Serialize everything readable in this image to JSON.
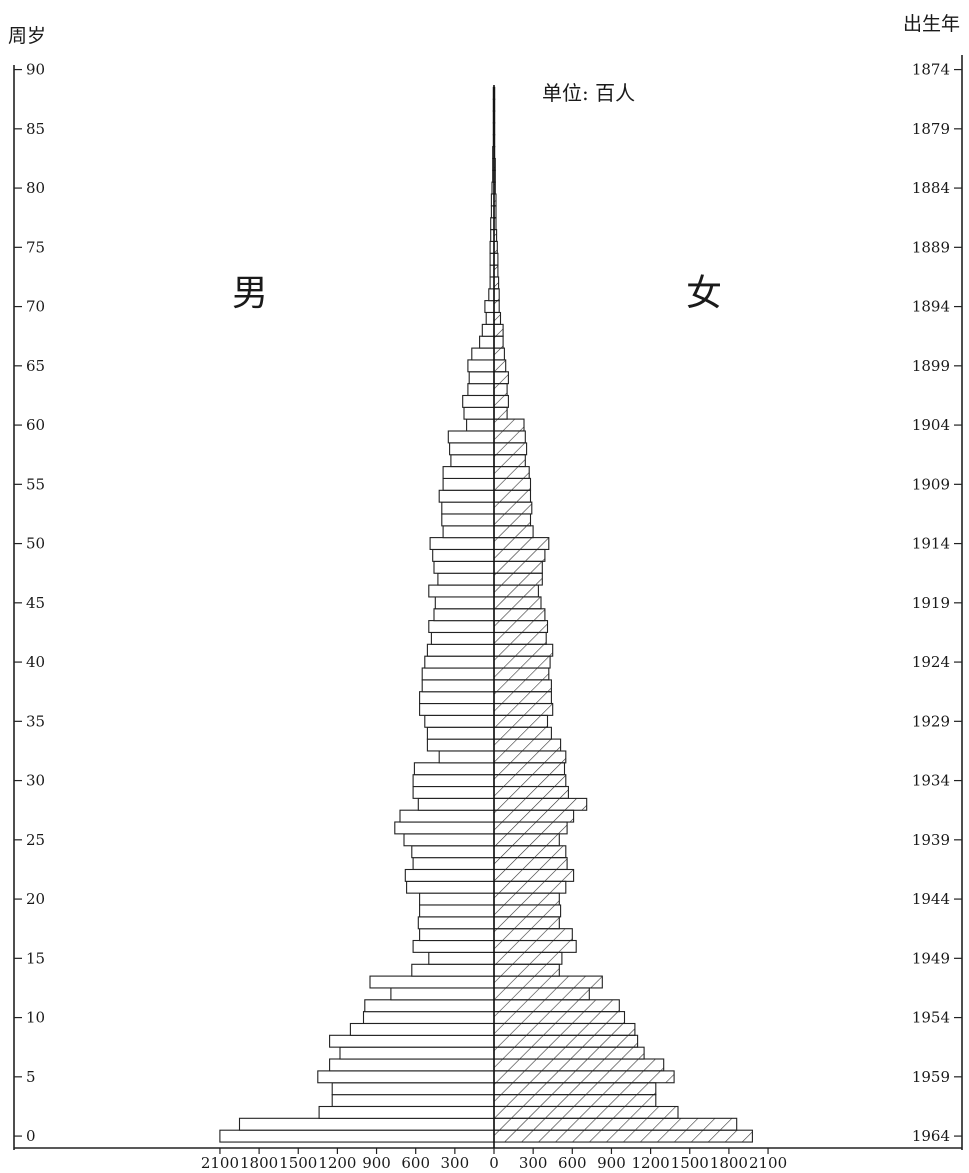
{
  "chart_data": {
    "type": "bar",
    "orientation": "horizontal",
    "chart_kind": "population pyramid",
    "unit": "单位: 百人",
    "left_axis_title": "周岁",
    "right_axis_title": "出生年",
    "sex_labels": {
      "male": "男",
      "female": "女"
    },
    "age_ticks": [
      "0",
      "5",
      "10",
      "15",
      "20",
      "25",
      "30",
      "35",
      "40",
      "45",
      "50",
      "55",
      "60",
      "65",
      "70",
      "75",
      "80",
      "85",
      "90"
    ],
    "birth_year_ticks": [
      "1964",
      "1959",
      "1954",
      "1949",
      "1944",
      "1939",
      "1934",
      "1929",
      "1924",
      "1919",
      "1914",
      "1909",
      "1904",
      "1899",
      "1894",
      "1889",
      "1884",
      "1879",
      "1874"
    ],
    "x_tick_labels": [
      "2100",
      "1800",
      "1500",
      "1200",
      "900",
      "600",
      "300",
      "0",
      "300",
      "600",
      "900",
      "1200",
      "1500",
      "1800",
      "2100"
    ],
    "xlim": [
      -2100,
      2100
    ],
    "age_range": [
      0,
      88
    ],
    "age_unit": "years",
    "series": [
      {
        "name": "男",
        "fill": "none",
        "values": [
          2100,
          1950,
          1340,
          1240,
          1240,
          1350,
          1260,
          1180,
          1260,
          1100,
          1000,
          990,
          790,
          950,
          630,
          500,
          620,
          570,
          580,
          570,
          570,
          670,
          680,
          620,
          630,
          690,
          760,
          720,
          580,
          620,
          620,
          610,
          420,
          510,
          510,
          530,
          570,
          570,
          550,
          550,
          530,
          510,
          480,
          500,
          460,
          450,
          500,
          430,
          460,
          470,
          490,
          390,
          400,
          400,
          420,
          390,
          390,
          330,
          340,
          350,
          210,
          230,
          240,
          200,
          190,
          200,
          170,
          110,
          90,
          60,
          70,
          40,
          30,
          30,
          30,
          30,
          25,
          25,
          20,
          20,
          15,
          10,
          10,
          10,
          5,
          5,
          5,
          5,
          5
        ]
      },
      {
        "name": "女",
        "fill": "hatched",
        "values": [
          1980,
          1860,
          1410,
          1240,
          1240,
          1380,
          1300,
          1150,
          1100,
          1080,
          1000,
          960,
          730,
          830,
          500,
          520,
          630,
          600,
          500,
          510,
          500,
          550,
          610,
          560,
          550,
          500,
          560,
          610,
          710,
          570,
          550,
          540,
          550,
          510,
          440,
          410,
          450,
          440,
          440,
          420,
          430,
          450,
          400,
          410,
          390,
          360,
          340,
          370,
          370,
          390,
          420,
          300,
          280,
          290,
          280,
          280,
          270,
          240,
          250,
          240,
          230,
          100,
          110,
          100,
          110,
          90,
          80,
          70,
          70,
          50,
          40,
          40,
          35,
          30,
          30,
          25,
          20,
          15,
          15,
          15,
          10,
          10,
          10,
          5,
          5,
          5,
          5,
          5,
          5
        ]
      }
    ]
  }
}
